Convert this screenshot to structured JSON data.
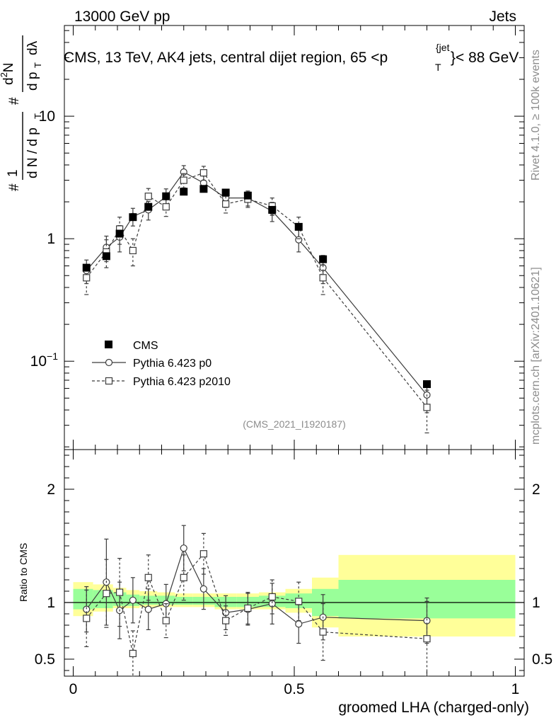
{
  "header": {
    "left": "13000 GeV pp",
    "right": "Jets"
  },
  "plot_title": {
    "main": "CMS, 13 TeV, AK4 jets, central dijet region, 65 <p",
    "super": "{jet",
    "sub": "T",
    "tail": "}< 88 GeV"
  },
  "side_labels": {
    "rivet": "Rivet 4.1.0, ≥ 100k events",
    "mcplots": "mcplots.cern.ch [arXiv:2401.10621]"
  },
  "analysis_id": "(CMS_2021_I1920187)",
  "y_label_top": {
    "hash": "#",
    "one": "1",
    "dN": "d N / d p",
    "dN_sub": "T",
    "hash2": "#",
    "d2N": "d",
    "d2N_sup": "2",
    "d2N_tail": "N",
    "dpT": "d p",
    "dpT_sub": "T",
    "dlambda": "dλ"
  },
  "x_label": "groomed LHA (charged-only)",
  "y_label_ratio": "Ratio to CMS",
  "colors": {
    "band_yellow": "#ffff99",
    "band_green": "#99ff99",
    "data": "#000000",
    "mc": "#3c3c3c"
  },
  "chart_data": [
    {
      "type": "scatter",
      "title": "CMS, 13 TeV, AK4 jets, central dijet region, 65 < pT jet < 88 GeV",
      "xlabel": "",
      "ylabel": "1/dN/dpT d2N/dpT dlambda",
      "yscale": "log",
      "ylim": [
        0.019,
        55
      ],
      "xlim": [
        -0.02,
        1.02
      ],
      "y_ticks": [
        0.1,
        1,
        10
      ],
      "y_tick_labels": {
        "base1": "10",
        "sup1": "−1",
        "l2": "1",
        "l3": "10"
      },
      "legend": "lower-left",
      "series": [
        {
          "name": "CMS",
          "style": "filled-square",
          "x": [
            0.03,
            0.075,
            0.105,
            0.135,
            0.17,
            0.21,
            0.25,
            0.295,
            0.345,
            0.395,
            0.45,
            0.51,
            0.565,
            0.8
          ],
          "y": [
            0.58,
            0.72,
            1.1,
            1.5,
            1.82,
            2.22,
            2.42,
            2.55,
            2.38,
            2.25,
            1.72,
            1.25,
            0.68,
            0.065
          ]
        },
        {
          "name": "Pythia 6.423 p0",
          "style": "open-circle-solid",
          "x": [
            0.03,
            0.075,
            0.105,
            0.135,
            0.17,
            0.21,
            0.25,
            0.295,
            0.345,
            0.395,
            0.45,
            0.51,
            0.565,
            0.8
          ],
          "y": [
            0.55,
            0.85,
            1.03,
            1.52,
            1.72,
            2.2,
            3.5,
            2.85,
            2.15,
            2.15,
            1.68,
            0.98,
            0.58,
            0.053
          ],
          "yerr": [
            0.12,
            0.2,
            0.25,
            0.25,
            0.3,
            0.35,
            0.45,
            0.4,
            0.35,
            0.3,
            0.3,
            0.2,
            0.15,
            0.015
          ]
        },
        {
          "name": "Pythia 6.423 p2010",
          "style": "open-square-dashed",
          "x": [
            0.03,
            0.075,
            0.105,
            0.135,
            0.17,
            0.21,
            0.25,
            0.295,
            0.345,
            0.395,
            0.45,
            0.51,
            0.565,
            0.8
          ],
          "y": [
            0.48,
            0.78,
            1.2,
            0.8,
            2.22,
            1.82,
            3.0,
            3.45,
            1.92,
            2.1,
            1.85,
            1.25,
            0.48,
            0.042
          ],
          "yerr": [
            0.13,
            0.2,
            0.3,
            0.2,
            0.35,
            0.3,
            0.4,
            0.45,
            0.3,
            0.3,
            0.3,
            0.25,
            0.13,
            0.016
          ]
        }
      ]
    },
    {
      "type": "scatter",
      "title": "",
      "xlabel": "groomed LHA (charged-only)",
      "ylabel": "Ratio to CMS",
      "ylim": [
        0.35,
        2.35
      ],
      "xlim": [
        -0.02,
        1.02
      ],
      "x_ticks": [
        0,
        0.5,
        1
      ],
      "x_tick_labels": [
        "0",
        "0.5",
        "1"
      ],
      "y_ticks": [
        0.5,
        1,
        2
      ],
      "y_tick_labels": [
        "0.5",
        "1",
        "2"
      ],
      "bands": {
        "bin_edges": [
          0,
          0.045,
          0.09,
          0.12,
          0.15,
          0.19,
          0.23,
          0.27,
          0.32,
          0.37,
          0.42,
          0.48,
          0.54,
          0.6,
          1.0
        ],
        "yellow_low": [
          0.88,
          0.92,
          0.95,
          0.95,
          0.96,
          0.96,
          0.96,
          0.96,
          0.94,
          0.94,
          0.94,
          0.91,
          0.78,
          0.7
        ],
        "yellow_high": [
          1.18,
          1.16,
          1.13,
          1.11,
          1.1,
          1.09,
          1.08,
          1.08,
          1.08,
          1.08,
          1.09,
          1.12,
          1.22,
          1.42
        ],
        "green_low": [
          0.94,
          0.95,
          0.97,
          0.97,
          0.98,
          0.98,
          0.98,
          0.98,
          0.96,
          0.96,
          0.96,
          0.95,
          0.88,
          0.86
        ],
        "green_high": [
          1.12,
          1.11,
          1.09,
          1.07,
          1.06,
          1.06,
          1.05,
          1.05,
          1.05,
          1.05,
          1.06,
          1.08,
          1.12,
          1.2
        ]
      },
      "series": [
        {
          "name": "Pythia 6.423 p0",
          "style": "open-circle-solid",
          "x": [
            0.03,
            0.075,
            0.105,
            0.135,
            0.17,
            0.21,
            0.25,
            0.295,
            0.345,
            0.395,
            0.45,
            0.51,
            0.565,
            0.8
          ],
          "y": [
            0.94,
            1.18,
            0.93,
            1.02,
            0.94,
            0.99,
            1.48,
            1.12,
            0.91,
            0.94,
            0.99,
            0.81,
            0.87,
            0.84
          ],
          "yerr": [
            0.2,
            0.38,
            0.25,
            0.2,
            0.18,
            0.17,
            0.2,
            0.18,
            0.15,
            0.14,
            0.18,
            0.17,
            0.2,
            0.2
          ]
        },
        {
          "name": "Pythia 6.423 p2010",
          "style": "open-square-dashed",
          "x": [
            0.03,
            0.075,
            0.105,
            0.135,
            0.17,
            0.21,
            0.25,
            0.295,
            0.345,
            0.395,
            0.45,
            0.51,
            0.565,
            0.8
          ],
          "y": [
            0.86,
            1.08,
            1.09,
            0.55,
            1.22,
            0.84,
            1.22,
            1.43,
            0.84,
            0.95,
            1.05,
            1.01,
            0.74,
            0.68
          ],
          "yerr": [
            0.25,
            0.3,
            0.3,
            0.2,
            0.2,
            0.15,
            0.2,
            0.18,
            0.13,
            0.14,
            0.15,
            0.17,
            0.25,
            0.33
          ]
        }
      ]
    }
  ]
}
